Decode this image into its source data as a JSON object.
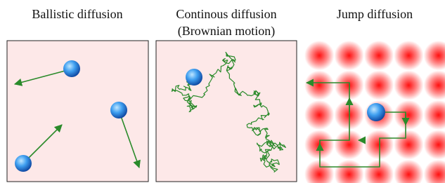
{
  "panels": [
    {
      "title": "Ballistic diffusion"
    },
    {
      "title": "Continous diffusion",
      "subtitle": "(Brownian motion)"
    },
    {
      "title": "Jump diffusion"
    }
  ]
}
